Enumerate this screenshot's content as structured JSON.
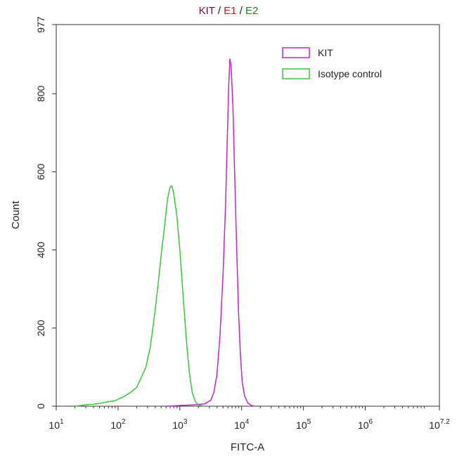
{
  "chart_data": {
    "type": "line",
    "title_parts": [
      {
        "text": "KIT",
        "color": "#7a0f3a"
      },
      {
        "text": " / ",
        "color": "#222222"
      },
      {
        "text": "E1",
        "color": "#d11a2a"
      },
      {
        "text": " / ",
        "color": "#222222"
      },
      {
        "text": "E2",
        "color": "#1a8a1a"
      }
    ],
    "xlabel": "FITC-A",
    "ylabel": "Count",
    "x_scale": "log10",
    "xlim": [
      1,
      7.2
    ],
    "ylim": [
      0,
      977
    ],
    "x_ticks": [
      {
        "base": "10",
        "exp": "1",
        "value": 1
      },
      {
        "base": "10",
        "exp": "2",
        "value": 2
      },
      {
        "base": "10",
        "exp": "3",
        "value": 3
      },
      {
        "base": "10",
        "exp": "4",
        "value": 4
      },
      {
        "base": "10",
        "exp": "5",
        "value": 5
      },
      {
        "base": "10",
        "exp": "6",
        "value": 6
      },
      {
        "base": "10",
        "exp": "7.2",
        "value": 7.2
      }
    ],
    "y_ticks": [
      {
        "label": "0",
        "value": 0
      },
      {
        "label": "200",
        "value": 200
      },
      {
        "label": "400",
        "value": 400
      },
      {
        "label": "600",
        "value": 600
      },
      {
        "label": "800",
        "value": 800
      },
      {
        "label": "977",
        "value": 977
      }
    ],
    "grid": false,
    "legend_position": "top-right",
    "series": [
      {
        "name": "KIT",
        "color": "#cc22cc",
        "points": [
          [
            2.8,
            0
          ],
          [
            3.0,
            2
          ],
          [
            3.2,
            3
          ],
          [
            3.4,
            6
          ],
          [
            3.5,
            15
          ],
          [
            3.55,
            35
          ],
          [
            3.6,
            80
          ],
          [
            3.65,
            180
          ],
          [
            3.7,
            340
          ],
          [
            3.74,
            520
          ],
          [
            3.77,
            700
          ],
          [
            3.79,
            820
          ],
          [
            3.81,
            889
          ],
          [
            3.83,
            870
          ],
          [
            3.86,
            760
          ],
          [
            3.89,
            580
          ],
          [
            3.92,
            400
          ],
          [
            3.95,
            240
          ],
          [
            3.98,
            130
          ],
          [
            4.01,
            60
          ],
          [
            4.05,
            25
          ],
          [
            4.1,
            8
          ],
          [
            4.16,
            2
          ],
          [
            4.2,
            0
          ]
        ]
      },
      {
        "name": "Isotype control",
        "color": "#33cc33",
        "points": [
          [
            1.3,
            0
          ],
          [
            1.4,
            2
          ],
          [
            1.5,
            4
          ],
          [
            1.6,
            5
          ],
          [
            1.7,
            7
          ],
          [
            1.8,
            10
          ],
          [
            1.95,
            14
          ],
          [
            2.1,
            25
          ],
          [
            2.2,
            35
          ],
          [
            2.3,
            48
          ],
          [
            2.35,
            65
          ],
          [
            2.45,
            100
          ],
          [
            2.52,
            150
          ],
          [
            2.58,
            220
          ],
          [
            2.64,
            300
          ],
          [
            2.7,
            390
          ],
          [
            2.76,
            470
          ],
          [
            2.8,
            530
          ],
          [
            2.84,
            560
          ],
          [
            2.87,
            565
          ],
          [
            2.9,
            545
          ],
          [
            2.95,
            490
          ],
          [
            3.0,
            400
          ],
          [
            3.05,
            290
          ],
          [
            3.1,
            180
          ],
          [
            3.15,
            90
          ],
          [
            3.2,
            35
          ],
          [
            3.25,
            12
          ],
          [
            3.3,
            3
          ],
          [
            3.4,
            0
          ]
        ]
      }
    ]
  }
}
